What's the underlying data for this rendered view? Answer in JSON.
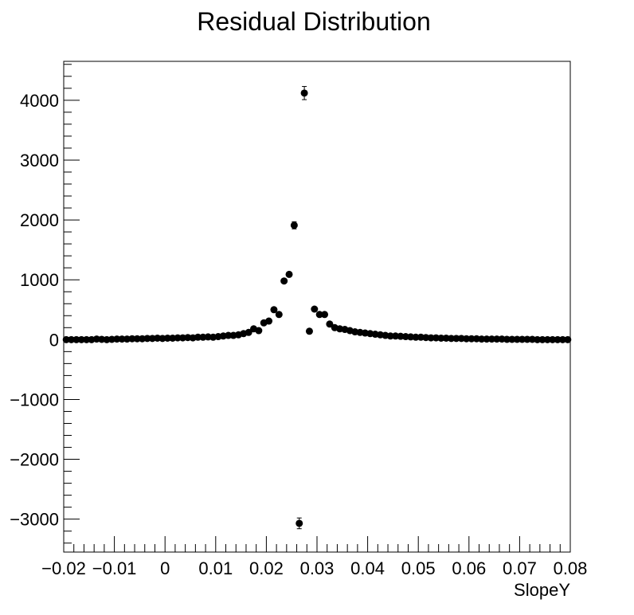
{
  "chart_data": {
    "type": "scatter",
    "title": "Residual Distribution",
    "xlabel": "SlopeY",
    "ylabel": "",
    "xlim": [
      -0.02,
      0.08
    ],
    "ylim": [
      -3550,
      4650
    ],
    "grid": false,
    "legend": "none",
    "x_ticks": [
      {
        "v": -0.02,
        "label": "−0.02"
      },
      {
        "v": -0.01,
        "label": "−0.01"
      },
      {
        "v": 0,
        "label": "0"
      },
      {
        "v": 0.01,
        "label": "0.01"
      },
      {
        "v": 0.02,
        "label": "0.02"
      },
      {
        "v": 0.03,
        "label": "0.03"
      },
      {
        "v": 0.04,
        "label": "0.04"
      },
      {
        "v": 0.05,
        "label": "0.05"
      },
      {
        "v": 0.06,
        "label": "0.06"
      },
      {
        "v": 0.07,
        "label": "0.07"
      },
      {
        "v": 0.08,
        "label": "0.08"
      }
    ],
    "y_ticks": [
      {
        "v": -3000,
        "label": "−3000"
      },
      {
        "v": -2000,
        "label": "−2000"
      },
      {
        "v": -1000,
        "label": "−1000"
      },
      {
        "v": 0,
        "label": "0"
      },
      {
        "v": 1000,
        "label": "1000"
      },
      {
        "v": 2000,
        "label": "2000"
      },
      {
        "v": 3000,
        "label": "3000"
      },
      {
        "v": 4000,
        "label": "4000"
      }
    ],
    "series": [
      {
        "color": "#000000",
        "x": [
          -0.0195,
          -0.0185,
          -0.0175,
          -0.0165,
          -0.0155,
          -0.0145,
          -0.0135,
          -0.0125,
          -0.0115,
          -0.0105,
          -0.0095,
          -0.0085,
          -0.0075,
          -0.0065,
          -0.0055,
          -0.0045,
          -0.0035,
          -0.0025,
          -0.0015,
          -0.0005,
          0.0005,
          0.0015,
          0.0025,
          0.0035,
          0.0045,
          0.0055,
          0.0065,
          0.0075,
          0.0085,
          0.0095,
          0.0105,
          0.0115,
          0.0125,
          0.0135,
          0.0145,
          0.0155,
          0.0165,
          0.0175,
          0.0185,
          0.0195,
          0.0205,
          0.0215,
          0.0225,
          0.0235,
          0.0245,
          0.0255,
          0.0265,
          0.0275,
          0.0285,
          0.0295,
          0.0305,
          0.0315,
          0.0325,
          0.0335,
          0.0345,
          0.0355,
          0.0365,
          0.0375,
          0.0385,
          0.0395,
          0.0405,
          0.0415,
          0.0425,
          0.0435,
          0.0445,
          0.0455,
          0.0465,
          0.0475,
          0.0485,
          0.0495,
          0.0505,
          0.0515,
          0.0525,
          0.0535,
          0.0545,
          0.0555,
          0.0565,
          0.0575,
          0.0585,
          0.0595,
          0.0605,
          0.0615,
          0.0625,
          0.0635,
          0.0645,
          0.0655,
          0.0665,
          0.0675,
          0.0685,
          0.0695,
          0.0705,
          0.0715,
          0.0725,
          0.0735,
          0.0745,
          0.0755,
          0.0765,
          0.0775,
          0.0785,
          0.0795
        ],
        "y": [
          0,
          0,
          0,
          0,
          0,
          0,
          10,
          5,
          0,
          5,
          10,
          10,
          10,
          15,
          15,
          15,
          20,
          20,
          25,
          20,
          25,
          25,
          30,
          30,
          35,
          30,
          40,
          40,
          45,
          40,
          50,
          60,
          70,
          70,
          80,
          100,
          120,
          180,
          150,
          280,
          310,
          500,
          420,
          980,
          1090,
          1910,
          -3070,
          4120,
          140,
          510,
          420,
          420,
          260,
          200,
          180,
          170,
          150,
          130,
          120,
          110,
          100,
          90,
          80,
          70,
          60,
          60,
          55,
          50,
          45,
          40,
          40,
          35,
          30,
          30,
          25,
          25,
          20,
          20,
          20,
          15,
          15,
          15,
          10,
          10,
          10,
          10,
          10,
          5,
          5,
          5,
          5,
          5,
          5,
          0,
          0,
          0,
          0,
          0,
          0,
          0
        ],
        "err": [
          8,
          8,
          8,
          8,
          8,
          8,
          8,
          8,
          8,
          8,
          8,
          8,
          8,
          8,
          8,
          8,
          8,
          8,
          8,
          8,
          8,
          8,
          8,
          8,
          8,
          8,
          8,
          8,
          8,
          8,
          8,
          8,
          10,
          10,
          12,
          14,
          14,
          18,
          16,
          20,
          22,
          28,
          26,
          38,
          40,
          60,
          90,
          110,
          40,
          30,
          26,
          26,
          20,
          18,
          16,
          14,
          14,
          12,
          12,
          12,
          10,
          10,
          10,
          10,
          10,
          10,
          10,
          10,
          10,
          10,
          8,
          8,
          8,
          8,
          8,
          8,
          8,
          8,
          8,
          8,
          8,
          8,
          8,
          8,
          8,
          8,
          8,
          8,
          8,
          8,
          8,
          8,
          8,
          8,
          8,
          8,
          8,
          8,
          8,
          8
        ]
      }
    ]
  }
}
